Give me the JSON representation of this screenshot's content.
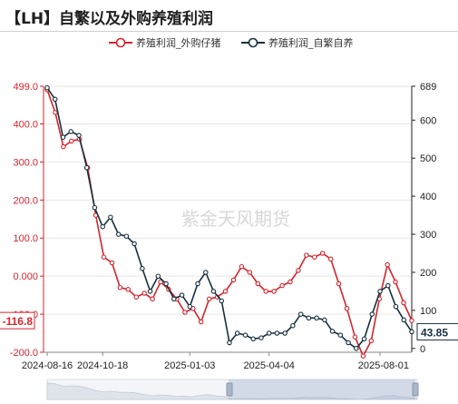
{
  "page": {
    "title": "【LH】自繁以及外购养殖利润"
  },
  "chart_data": {
    "type": "line",
    "title": "【LH】自繁以及外购养殖利润",
    "watermark": "紫金天风期货",
    "x_tick_labels": [
      "2024-08-16",
      "2024-10-18",
      "2025-01-03",
      "2025-04-04",
      "2025-08-01"
    ],
    "x_tick_positions": [
      0,
      7,
      18,
      28,
      42
    ],
    "y_left": {
      "min": -200,
      "max": 499,
      "ticks": [
        "499.0",
        "400.0",
        "300.0",
        "200.0",
        "100.0",
        "0.000",
        "-100.0",
        "-200.0"
      ],
      "tick_values": [
        499,
        400,
        300,
        200,
        100,
        0,
        -100,
        -200
      ]
    },
    "y_right": {
      "min": -10,
      "max": 689,
      "ticks": [
        "689",
        "600",
        "500",
        "400",
        "300",
        "200",
        "100",
        "0"
      ],
      "tick_values": [
        689,
        600,
        500,
        400,
        300,
        200,
        100,
        0
      ]
    },
    "grid": true,
    "legend_position": "top",
    "series": [
      {
        "name": "养殖利润_外购仔猪",
        "axis": "left",
        "color": "#d4242c",
        "last_label": "-116.8",
        "values": [
          490,
          430,
          340,
          355,
          360,
          285,
          160,
          50,
          35,
          -30,
          -35,
          -55,
          -45,
          -60,
          -15,
          -35,
          -60,
          -95,
          -85,
          -120,
          -60,
          -55,
          -40,
          -10,
          25,
          10,
          -20,
          -40,
          -40,
          -25,
          -15,
          15,
          55,
          50,
          60,
          45,
          -20,
          -85,
          -160,
          -210,
          -170,
          -60,
          30,
          -15,
          -70,
          -116.8
        ]
      },
      {
        "name": "养殖利润_自繁自养",
        "axis": "right",
        "color": "#15303e",
        "last_label": "43.85",
        "values": [
          685,
          655,
          555,
          570,
          560,
          475,
          370,
          320,
          345,
          300,
          295,
          275,
          210,
          150,
          190,
          170,
          130,
          140,
          110,
          170,
          200,
          150,
          125,
          15,
          40,
          35,
          25,
          28,
          40,
          40,
          40,
          60,
          90,
          80,
          80,
          75,
          45,
          35,
          15,
          0,
          25,
          90,
          150,
          165,
          110,
          75,
          43.85
        ]
      }
    ]
  }
}
